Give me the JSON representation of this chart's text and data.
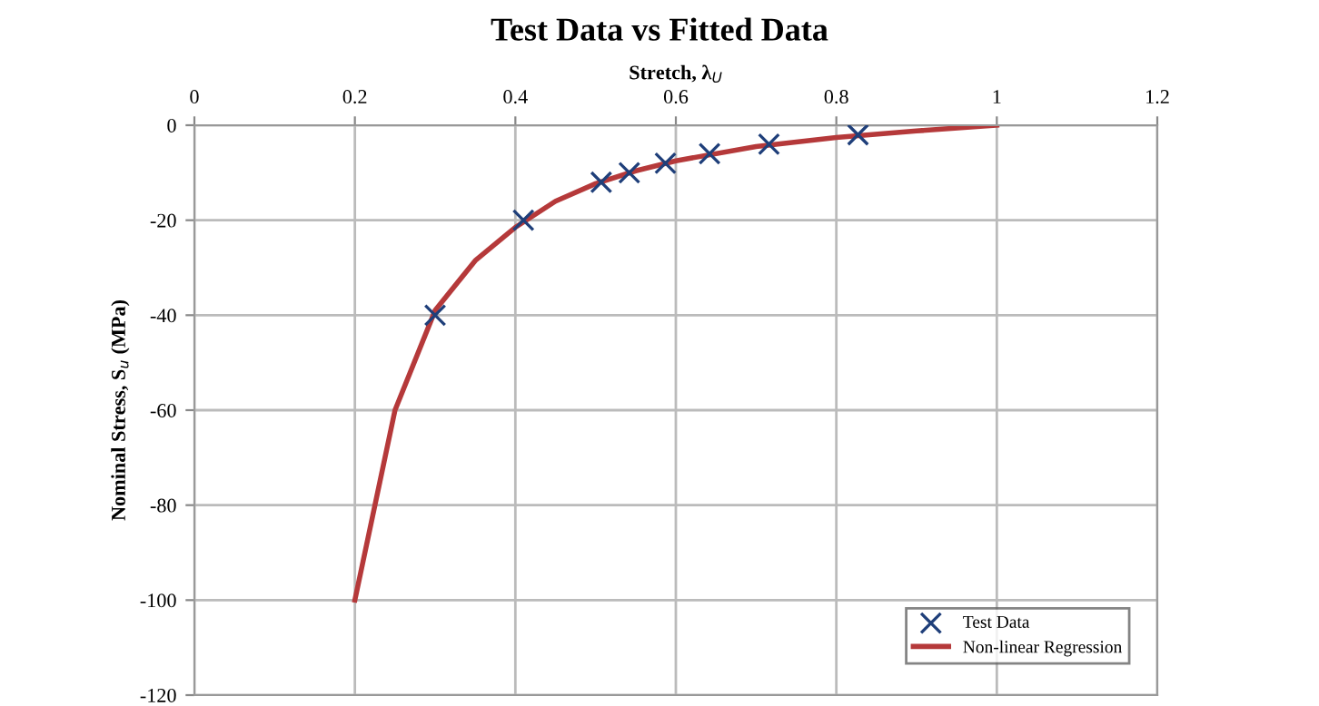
{
  "chart_data": {
    "type": "line",
    "title": "Test Data vs Fitted Data",
    "xlabel": "Stretch, λ$_{U}$",
    "ylabel": "Nominal Stress, S$_{u}$ (MPa)",
    "xlim": [
      0,
      1.2
    ],
    "xticks": [
      0,
      0.2,
      0.4,
      0.6,
      0.8,
      1,
      1.2
    ],
    "ylim": [
      -120,
      0
    ],
    "yticks": [
      -120,
      -100,
      -80,
      -60,
      -40,
      -20,
      0
    ],
    "grid": true,
    "legend": "bottom right",
    "series": [
      {
        "name": "Test Data",
        "type": "scatter",
        "marker": "cross",
        "color": "#1f3f7a",
        "x": [
          0.3,
          0.41,
          0.507,
          0.542,
          0.587,
          0.642,
          0.716,
          0.827
        ],
        "values": [
          -40,
          -20,
          -12,
          -10,
          -8,
          -6,
          -4,
          -2
        ]
      },
      {
        "name": "Non-linear Regression",
        "marker": "none",
        "line_style": "solid",
        "color": "#b5393a",
        "x": [
          0.2,
          0.25,
          0.3,
          0.35,
          0.4,
          0.45,
          0.5,
          0.55,
          0.6,
          0.7,
          0.8,
          0.9,
          1.0
        ],
        "values": [
          -100,
          -60,
          -39,
          -28.5,
          -21.5,
          -16,
          -12.3,
          -9.6,
          -7.5,
          -4.5,
          -2.6,
          -1.2,
          0
        ]
      }
    ]
  }
}
